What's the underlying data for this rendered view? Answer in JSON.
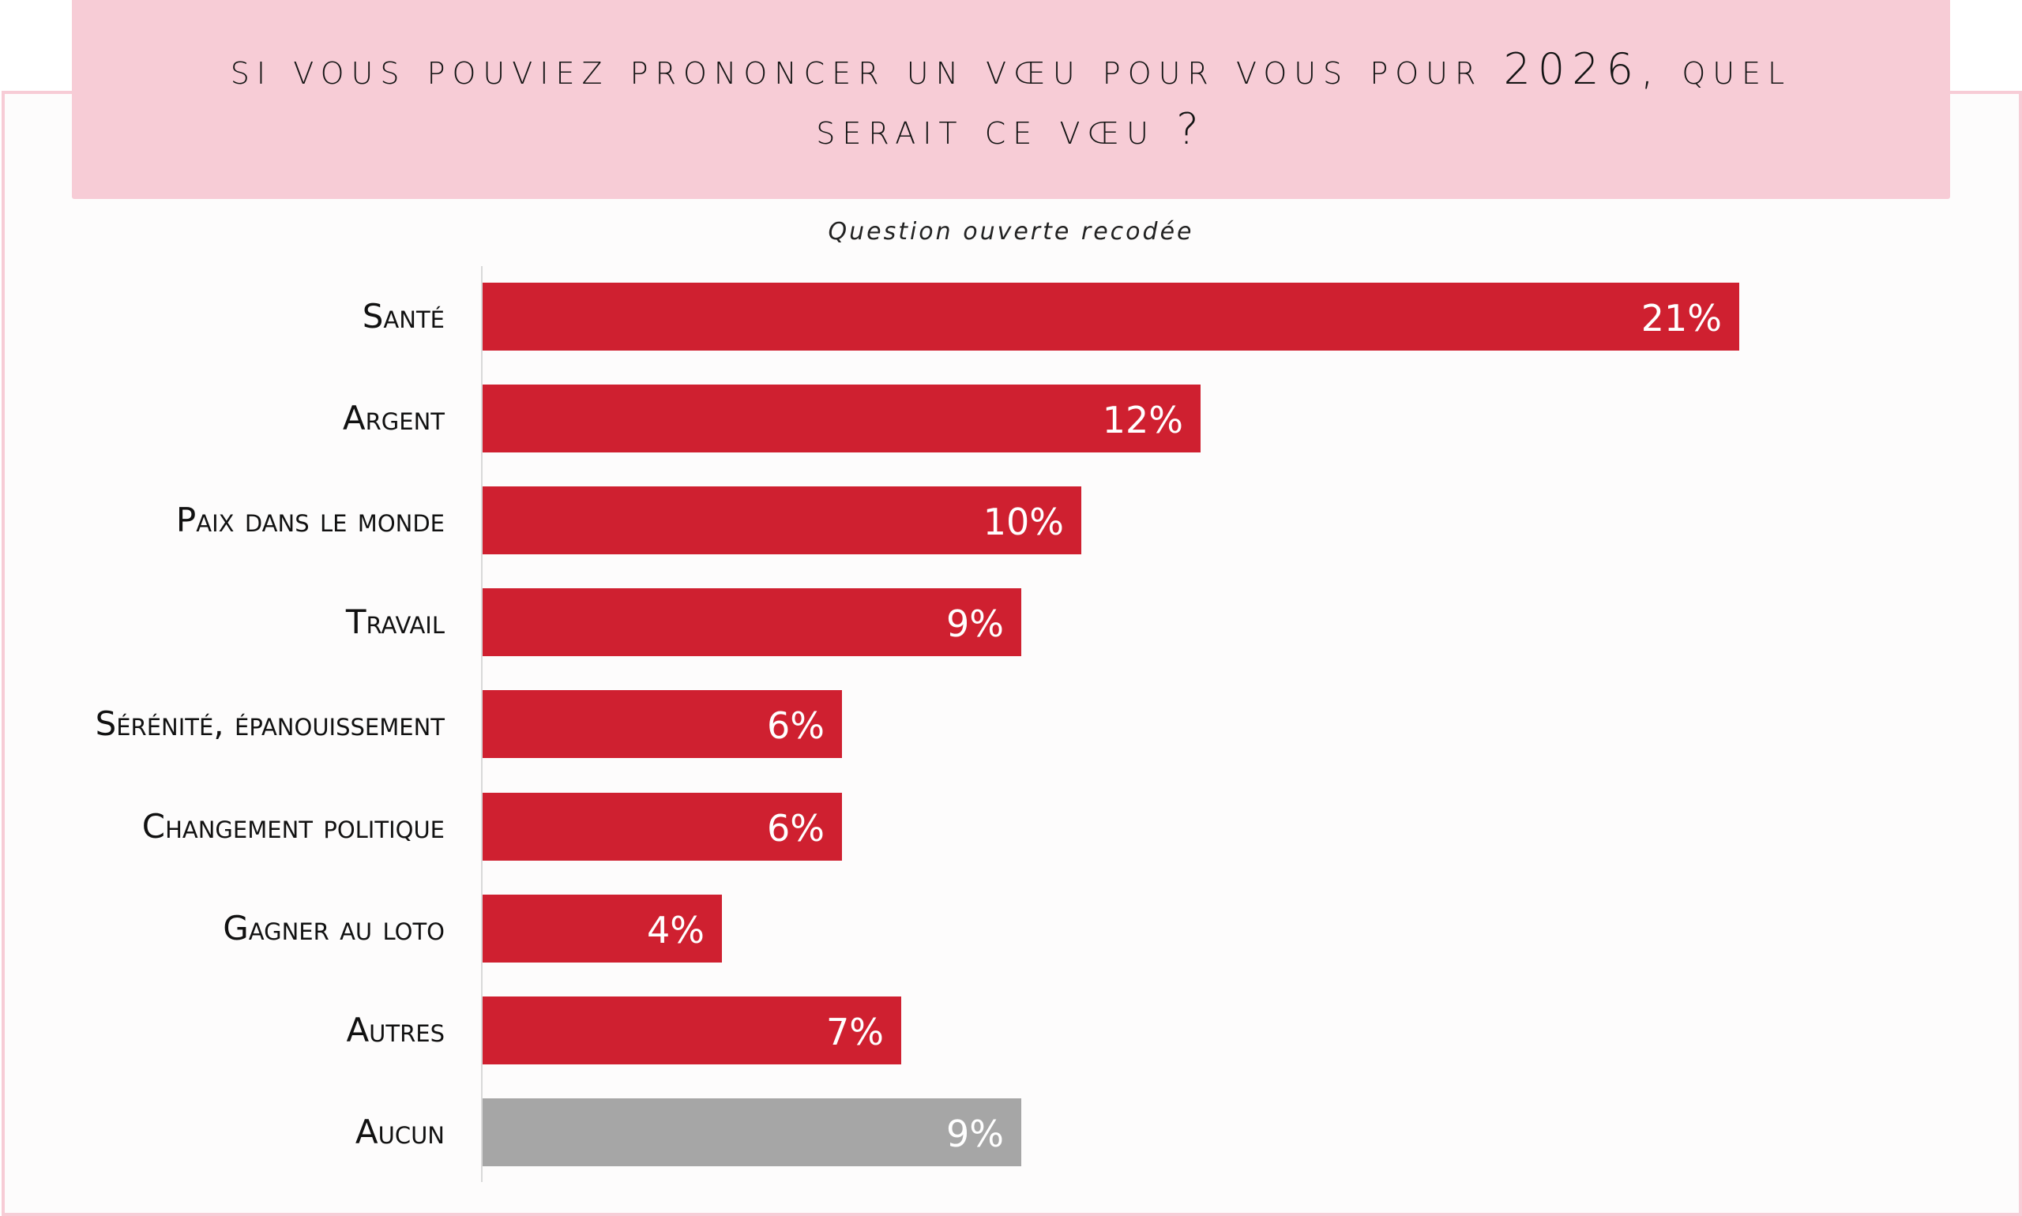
{
  "header": {
    "title_line1_prefix": "Si vous pouviez prononcer un vœu pour vous pour ",
    "title_year": "2026",
    "title_line1_suffix": ", quel",
    "title_line2": "serait ce vœu ?"
  },
  "subtitle": "Question ouverte recodée",
  "colors": {
    "accent": "#cf2030",
    "neutral": "#a6a6a6",
    "header_bg": "#f7ccd6",
    "frame_border": "#f7ccd6"
  },
  "chart_data": {
    "type": "bar",
    "orientation": "horizontal",
    "title": "Si vous pouviez prononcer un vœu pour vous pour 2026, quel serait ce vœu ?",
    "subtitle": "Question ouverte recodée",
    "xlabel": "",
    "ylabel": "",
    "grid": false,
    "xlim": [
      0,
      21
    ],
    "categories": [
      "Santé",
      "Argent",
      "Paix dans le monde",
      "Travail",
      "Sérénité, épanouissement",
      "Changement politique",
      "Gagner au loto",
      "Autres",
      "Aucun"
    ],
    "values": [
      21,
      12,
      10,
      9,
      6,
      6,
      4,
      7,
      9
    ],
    "labels": [
      "21%",
      "12%",
      "10%",
      "9%",
      "6%",
      "6%",
      "4%",
      "7%",
      "9%"
    ],
    "bar_colors": [
      "#cf2030",
      "#cf2030",
      "#cf2030",
      "#cf2030",
      "#cf2030",
      "#cf2030",
      "#cf2030",
      "#cf2030",
      "#a6a6a6"
    ]
  }
}
